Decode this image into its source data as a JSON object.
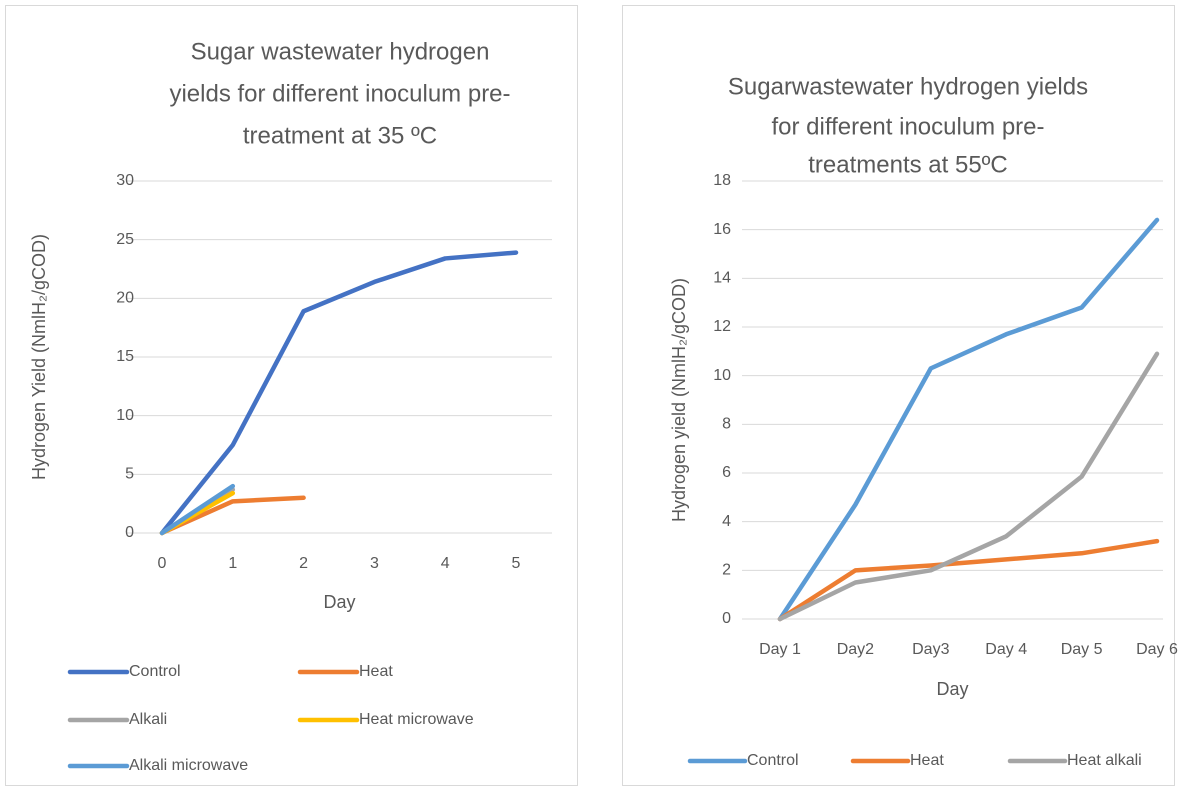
{
  "chart_data": [
    {
      "type": "line",
      "title": [
        "Sugar wastewater hydrogen",
        "yields for different inoculum pre-",
        "treatment at 35 ºC"
      ],
      "x_label": "Day",
      "y_label": "Hydrogen Yield (NmlH₂/gCOD)",
      "categories": [
        "0",
        "1",
        "2",
        "3",
        "4",
        "5"
      ],
      "ylim": [
        0,
        30
      ],
      "yticks": [
        0,
        5,
        10,
        15,
        20,
        25,
        30
      ],
      "grid": true,
      "legend": "bottom",
      "series": [
        {
          "name": "Control",
          "color": "#4472C4",
          "values": [
            0,
            7.5,
            18.9,
            21.4,
            23.4,
            23.9
          ]
        },
        {
          "name": "Heat",
          "color": "#ED7D31",
          "values": [
            0,
            2.7,
            3.0,
            null,
            null,
            null
          ]
        },
        {
          "name": "Alkali",
          "color": "#A5A5A5",
          "values": [
            0,
            3.7,
            null,
            null,
            null,
            null
          ]
        },
        {
          "name": "Heat microwave",
          "color": "#FFC000",
          "values": [
            0,
            3.4,
            null,
            null,
            null,
            null
          ]
        },
        {
          "name": "Alkali microwave",
          "color": "#5B9BD5",
          "values": [
            0,
            4.0,
            null,
            null,
            null,
            null
          ]
        }
      ]
    },
    {
      "type": "line",
      "title": [
        "Sugarwastewater hydrogen yields",
        "for different inoculum pre-",
        "treatments at 55ºC"
      ],
      "x_label": "Day",
      "y_label": "Hydrogen yield (NmlH₂/gCOD)",
      "categories": [
        "Day 1",
        "Day2",
        "Day3",
        "Day 4",
        "Day 5",
        "Day 6"
      ],
      "ylim": [
        0,
        18
      ],
      "yticks": [
        0,
        2,
        4,
        6,
        8,
        10,
        12,
        14,
        16,
        18
      ],
      "grid": true,
      "legend": "bottom",
      "series": [
        {
          "name": "Control",
          "color": "#5B9BD5",
          "values": [
            0,
            4.7,
            10.3,
            11.7,
            12.8,
            16.4
          ]
        },
        {
          "name": "Heat",
          "color": "#ED7D31",
          "values": [
            0,
            2.0,
            2.2,
            2.45,
            2.7,
            3.2
          ]
        },
        {
          "name": "Heat alkali",
          "color": "#A5A5A5",
          "values": [
            0,
            1.5,
            2.0,
            3.4,
            5.85,
            10.9
          ]
        }
      ]
    }
  ]
}
